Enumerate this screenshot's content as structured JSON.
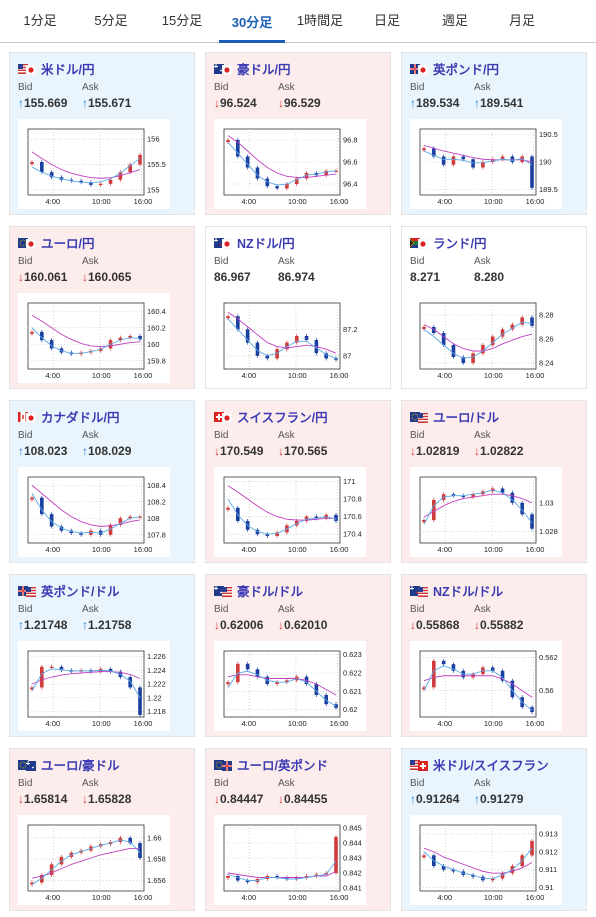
{
  "tabs": [
    {
      "label": "1分足",
      "active": false
    },
    {
      "label": "5分足",
      "active": false
    },
    {
      "label": "15分足",
      "active": false
    },
    {
      "label": "30分足",
      "active": true
    },
    {
      "label": "1時間足",
      "active": false
    },
    {
      "label": "日足",
      "active": false
    },
    {
      "label": "週足",
      "active": false
    },
    {
      "label": "月足",
      "active": false
    }
  ],
  "bid_label": "Bid",
  "ask_label": "Ask",
  "colors": {
    "up": "#1f7bd1",
    "down": "#d23b3b",
    "title": "#3b3bb3",
    "active_tab": "#1a5fb4",
    "up_bg": "#e9f4fc",
    "down_bg": "#fcecec",
    "ma_short": "#5aa9e6",
    "ma_long": "#c040c0"
  },
  "x_ticks": [
    "4:00",
    "10:00",
    "16:00"
  ],
  "cards": [
    {
      "pair": "米ドル/円",
      "flag": "us-jp",
      "dir": "up",
      "bid": "155.669",
      "ask": "155.671",
      "bid_arrow": "↑",
      "ask_arrow": "↑",
      "y_ticks": [
        "156",
        "155.5",
        "155"
      ],
      "ylim": [
        154.9,
        156.2
      ],
      "values": [
        155.55,
        155.35,
        155.25,
        155.2,
        155.18,
        155.15,
        155.1,
        155.12,
        155.2,
        155.35,
        155.5,
        155.69
      ],
      "ma_short": [
        155.45,
        155.35,
        155.27,
        155.22,
        155.18,
        155.15,
        155.14,
        155.16,
        155.22,
        155.33,
        155.48,
        155.62
      ],
      "ma_long": [
        155.75,
        155.62,
        155.5,
        155.4,
        155.33,
        155.28,
        155.24,
        155.23,
        155.24,
        155.28,
        155.34,
        155.4
      ]
    },
    {
      "pair": "豪ドル/円",
      "flag": "au-jp",
      "dir": "down",
      "bid": "96.524",
      "ask": "96.529",
      "bid_arrow": "↓",
      "ask_arrow": "↓",
      "y_ticks": [
        "96.8",
        "96.6",
        "96.4"
      ],
      "ylim": [
        96.3,
        96.9
      ],
      "values": [
        96.8,
        96.65,
        96.55,
        96.45,
        96.38,
        96.36,
        96.4,
        96.45,
        96.5,
        96.48,
        96.52,
        96.52
      ],
      "ma_short": [
        96.78,
        96.68,
        96.58,
        96.48,
        96.42,
        96.39,
        96.4,
        96.44,
        96.48,
        96.49,
        96.51,
        96.52
      ],
      "ma_long": [
        96.84,
        96.78,
        96.7,
        96.62,
        96.55,
        96.5,
        96.47,
        96.46,
        96.46,
        96.47,
        96.48,
        96.49
      ]
    },
    {
      "pair": "英ポンド/円",
      "flag": "gb-jp",
      "dir": "up",
      "bid": "189.534",
      "ask": "189.541",
      "bid_arrow": "↑",
      "ask_arrow": "↑",
      "y_ticks": [
        "190.5",
        "190",
        "189.5"
      ],
      "ylim": [
        189.4,
        190.6
      ],
      "values": [
        190.25,
        190.1,
        189.95,
        190.1,
        190.05,
        189.9,
        190.0,
        190.05,
        190.1,
        190.0,
        190.1,
        189.53
      ],
      "ma_short": [
        190.2,
        190.12,
        190.05,
        190.05,
        190.03,
        189.98,
        189.99,
        190.02,
        190.05,
        190.03,
        190.06,
        189.95
      ],
      "ma_long": [
        190.3,
        190.25,
        190.2,
        190.16,
        190.12,
        190.08,
        190.05,
        190.04,
        190.04,
        190.04,
        190.04,
        190.0
      ]
    },
    {
      "pair": "ユーロ/円",
      "flag": "eu-jp",
      "dir": "down",
      "bid": "160.061",
      "ask": "160.065",
      "bid_arrow": "↓",
      "ask_arrow": "↓",
      "y_ticks": [
        "160.4",
        "160.2",
        "160",
        "159.8"
      ],
      "ylim": [
        159.7,
        160.5
      ],
      "values": [
        160.15,
        160.05,
        159.95,
        159.9,
        159.88,
        159.9,
        159.92,
        159.95,
        160.05,
        160.08,
        160.1,
        160.06
      ],
      "ma_short": [
        160.2,
        160.08,
        159.98,
        159.92,
        159.89,
        159.89,
        159.91,
        159.94,
        160.0,
        160.05,
        160.08,
        160.07
      ],
      "ma_long": [
        160.35,
        160.28,
        160.2,
        160.12,
        160.06,
        160.01,
        159.98,
        159.97,
        159.98,
        160.0,
        160.02,
        160.03
      ]
    },
    {
      "pair": "NZドル/円",
      "flag": "nz-jp",
      "dir": "flat",
      "bid": "86.967",
      "ask": "86.974",
      "bid_arrow": "",
      "ask_arrow": "",
      "y_ticks": [
        "87.2",
        "87"
      ],
      "ylim": [
        86.9,
        87.4
      ],
      "values": [
        87.3,
        87.2,
        87.1,
        87.0,
        86.98,
        87.05,
        87.1,
        87.15,
        87.12,
        87.02,
        86.98,
        86.97
      ],
      "ma_short": [
        87.28,
        87.2,
        87.12,
        87.04,
        87.0,
        87.02,
        87.07,
        87.11,
        87.11,
        87.06,
        87.01,
        86.98
      ],
      "ma_long": [
        87.33,
        87.28,
        87.22,
        87.16,
        87.1,
        87.07,
        87.06,
        87.07,
        87.08,
        87.07,
        87.05,
        87.02
      ]
    },
    {
      "pair": "ランド/円",
      "flag": "za-jp",
      "dir": "flat",
      "bid": "8.271",
      "ask": "8.280",
      "bid_arrow": "",
      "ask_arrow": "",
      "y_ticks": [
        "8.28",
        "8.26",
        "8.24"
      ],
      "ylim": [
        8.235,
        8.29
      ],
      "values": [
        8.27,
        8.265,
        8.255,
        8.245,
        8.24,
        8.248,
        8.255,
        8.262,
        8.268,
        8.272,
        8.278,
        8.271
      ],
      "ma_short": [
        8.268,
        8.262,
        8.255,
        8.248,
        8.244,
        8.245,
        8.25,
        8.257,
        8.264,
        8.269,
        8.274,
        8.273
      ],
      "ma_long": [
        8.272,
        8.268,
        8.262,
        8.256,
        8.252,
        8.25,
        8.25,
        8.252,
        8.256,
        8.259,
        8.262,
        8.264
      ]
    },
    {
      "pair": "カナダドル/円",
      "flag": "ca-jp",
      "dir": "up",
      "bid": "108.023",
      "ask": "108.029",
      "bid_arrow": "↑",
      "ask_arrow": "↑",
      "y_ticks": [
        "108.4",
        "108.2",
        "108",
        "107.8"
      ],
      "ylim": [
        107.7,
        108.5
      ],
      "values": [
        108.25,
        108.05,
        107.9,
        107.85,
        107.82,
        107.8,
        107.85,
        107.8,
        107.92,
        108.0,
        108.02,
        108.02
      ],
      "ma_short": [
        108.3,
        108.1,
        107.96,
        107.88,
        107.84,
        107.82,
        107.83,
        107.82,
        107.87,
        107.94,
        108.0,
        108.02
      ],
      "ma_long": [
        108.4,
        108.3,
        108.2,
        108.1,
        108.02,
        107.96,
        107.92,
        107.9,
        107.91,
        107.93,
        107.96,
        107.98
      ]
    },
    {
      "pair": "スイスフラン/円",
      "flag": "ch-jp",
      "dir": "down",
      "bid": "170.549",
      "ask": "170.565",
      "bid_arrow": "↓",
      "ask_arrow": "↓",
      "y_ticks": [
        "171",
        "170.8",
        "170.6",
        "170.4"
      ],
      "ylim": [
        170.3,
        171.05
      ],
      "values": [
        170.7,
        170.55,
        170.45,
        170.4,
        170.38,
        170.42,
        170.5,
        170.55,
        170.6,
        170.58,
        170.62,
        170.55
      ],
      "ma_short": [
        170.8,
        170.62,
        170.5,
        170.43,
        170.4,
        170.41,
        170.46,
        170.52,
        170.57,
        170.58,
        170.6,
        170.57
      ],
      "ma_long": [
        170.95,
        170.88,
        170.8,
        170.72,
        170.65,
        170.6,
        170.57,
        170.56,
        170.56,
        170.57,
        170.58,
        170.58
      ]
    },
    {
      "pair": "ユーロ/ドル",
      "flag": "eu-us",
      "dir": "down",
      "bid": "1.02819",
      "ask": "1.02822",
      "bid_arrow": "↓",
      "ask_arrow": "↓",
      "y_ticks": [
        "1.03",
        "1.028"
      ],
      "ylim": [
        1.0272,
        1.0318
      ],
      "values": [
        1.0288,
        1.0302,
        1.0306,
        1.0305,
        1.0304,
        1.0306,
        1.0308,
        1.031,
        1.0307,
        1.03,
        1.0292,
        1.0282
      ],
      "ma_short": [
        1.0285,
        1.0298,
        1.0304,
        1.0305,
        1.0305,
        1.0306,
        1.0307,
        1.0309,
        1.0307,
        1.0302,
        1.0295,
        1.0286
      ],
      "ma_long": [
        1.029,
        1.0294,
        1.0298,
        1.0301,
        1.0303,
        1.0304,
        1.0305,
        1.0306,
        1.0306,
        1.0305,
        1.0303,
        1.03
      ]
    },
    {
      "pair": "英ポンド/ドル",
      "flag": "gb-us",
      "dir": "up",
      "bid": "1.21748",
      "ask": "1.21758",
      "bid_arrow": "↑",
      "ask_arrow": "↑",
      "y_ticks": [
        "1.226",
        "1.224",
        "1.222",
        "1.22",
        "1.218"
      ],
      "ylim": [
        1.2172,
        1.2268
      ],
      "values": [
        1.2215,
        1.2245,
        1.2245,
        1.224,
        1.2238,
        1.224,
        1.2238,
        1.2242,
        1.2238,
        1.223,
        1.2215,
        1.2175
      ],
      "ma_short": [
        1.221,
        1.2235,
        1.2242,
        1.2241,
        1.2239,
        1.2239,
        1.2239,
        1.224,
        1.2239,
        1.2234,
        1.2224,
        1.22
      ],
      "ma_long": [
        1.222,
        1.2226,
        1.223,
        1.2233,
        1.2235,
        1.2236,
        1.2237,
        1.2238,
        1.2238,
        1.2237,
        1.2234,
        1.2228
      ]
    },
    {
      "pair": "豪ドル/ドル",
      "flag": "au-us",
      "dir": "down",
      "bid": "0.62006",
      "ask": "0.62010",
      "bid_arrow": "↓",
      "ask_arrow": "↓",
      "y_ticks": [
        "0.623",
        "0.622",
        "0.621",
        "0.62"
      ],
      "ylim": [
        0.6196,
        0.6232
      ],
      "values": [
        0.6215,
        0.6225,
        0.6222,
        0.6218,
        0.6214,
        0.6215,
        0.6216,
        0.6218,
        0.6214,
        0.6208,
        0.6203,
        0.6201
      ],
      "ma_short": [
        0.6212,
        0.622,
        0.6221,
        0.6219,
        0.6216,
        0.6215,
        0.6215,
        0.6217,
        0.6215,
        0.621,
        0.6205,
        0.6202
      ],
      "ma_long": [
        0.6218,
        0.6219,
        0.6219,
        0.6218,
        0.6217,
        0.6217,
        0.6217,
        0.6217,
        0.6216,
        0.6214,
        0.6211,
        0.6208
      ]
    },
    {
      "pair": "NZドル/ドル",
      "flag": "nz-us",
      "dir": "down",
      "bid": "0.55868",
      "ask": "0.55882",
      "bid_arrow": "↓",
      "ask_arrow": "↓",
      "y_ticks": [
        "0.562",
        "0.56"
      ],
      "ylim": [
        0.5584,
        0.5624
      ],
      "values": [
        0.5602,
        0.5618,
        0.5616,
        0.5612,
        0.5608,
        0.561,
        0.5614,
        0.5612,
        0.5606,
        0.5596,
        0.559,
        0.5587
      ],
      "ma_short": [
        0.56,
        0.5612,
        0.5615,
        0.5613,
        0.561,
        0.561,
        0.5612,
        0.5612,
        0.5608,
        0.56,
        0.5593,
        0.5588
      ],
      "ma_long": [
        0.5606,
        0.5608,
        0.5609,
        0.5609,
        0.5609,
        0.5609,
        0.5609,
        0.5609,
        0.5607,
        0.5604,
        0.56,
        0.5596
      ]
    },
    {
      "pair": "ユーロ/豪ドル",
      "flag": "eu-au",
      "dir": "down",
      "bid": "1.65814",
      "ask": "1.65828",
      "bid_arrow": "↓",
      "ask_arrow": "↓",
      "y_ticks": [
        "1.66",
        "1.658",
        "1.656"
      ],
      "ylim": [
        1.655,
        1.6612
      ],
      "values": [
        1.6558,
        1.6565,
        1.6575,
        1.6582,
        1.6586,
        1.6588,
        1.6592,
        1.6594,
        1.6596,
        1.66,
        1.6595,
        1.6581
      ],
      "ma_short": [
        1.6556,
        1.6562,
        1.657,
        1.6578,
        1.6584,
        1.6587,
        1.659,
        1.6593,
        1.6595,
        1.6598,
        1.6596,
        1.6586
      ],
      "ma_long": [
        1.6562,
        1.6564,
        1.6567,
        1.6571,
        1.6575,
        1.6578,
        1.6581,
        1.6584,
        1.6586,
        1.6588,
        1.659,
        1.659
      ]
    },
    {
      "pair": "ユーロ/英ポンド",
      "flag": "eu-gb",
      "dir": "down",
      "bid": "0.84447",
      "ask": "0.84455",
      "bid_arrow": "↓",
      "ask_arrow": "↓",
      "y_ticks": [
        "0.845",
        "0.844",
        "0.843",
        "0.842",
        "0.841"
      ],
      "ylim": [
        0.8408,
        0.8452
      ],
      "values": [
        0.8418,
        0.8415,
        0.8414,
        0.8416,
        0.8418,
        0.8417,
        0.8416,
        0.8417,
        0.8418,
        0.8419,
        0.842,
        0.8444
      ],
      "ma_short": [
        0.8419,
        0.8417,
        0.8415,
        0.8415,
        0.8417,
        0.8417,
        0.8416,
        0.8416,
        0.8417,
        0.8418,
        0.8419,
        0.8428
      ],
      "ma_long": [
        0.842,
        0.8419,
        0.8418,
        0.8417,
        0.8417,
        0.8417,
        0.8417,
        0.8417,
        0.8417,
        0.8418,
        0.8418,
        0.8421
      ]
    },
    {
      "pair": "米ドル/スイスフラン",
      "flag": "us-ch",
      "dir": "up",
      "bid": "0.91264",
      "ask": "0.91279",
      "bid_arrow": "↑",
      "ask_arrow": "↑",
      "y_ticks": [
        "0.913",
        "0.912",
        "0.911",
        "0.91"
      ],
      "ylim": [
        0.9098,
        0.9135
      ],
      "values": [
        0.9118,
        0.9112,
        0.911,
        0.9109,
        0.9107,
        0.9106,
        0.9104,
        0.9105,
        0.9108,
        0.9112,
        0.9118,
        0.9126
      ],
      "ma_short": [
        0.912,
        0.9115,
        0.9112,
        0.911,
        0.9108,
        0.9107,
        0.9105,
        0.9105,
        0.9107,
        0.911,
        0.9115,
        0.9122
      ],
      "ma_long": [
        0.9122,
        0.912,
        0.9117,
        0.9115,
        0.9113,
        0.9111,
        0.9109,
        0.9108,
        0.9108,
        0.9109,
        0.9111,
        0.9114
      ]
    }
  ]
}
